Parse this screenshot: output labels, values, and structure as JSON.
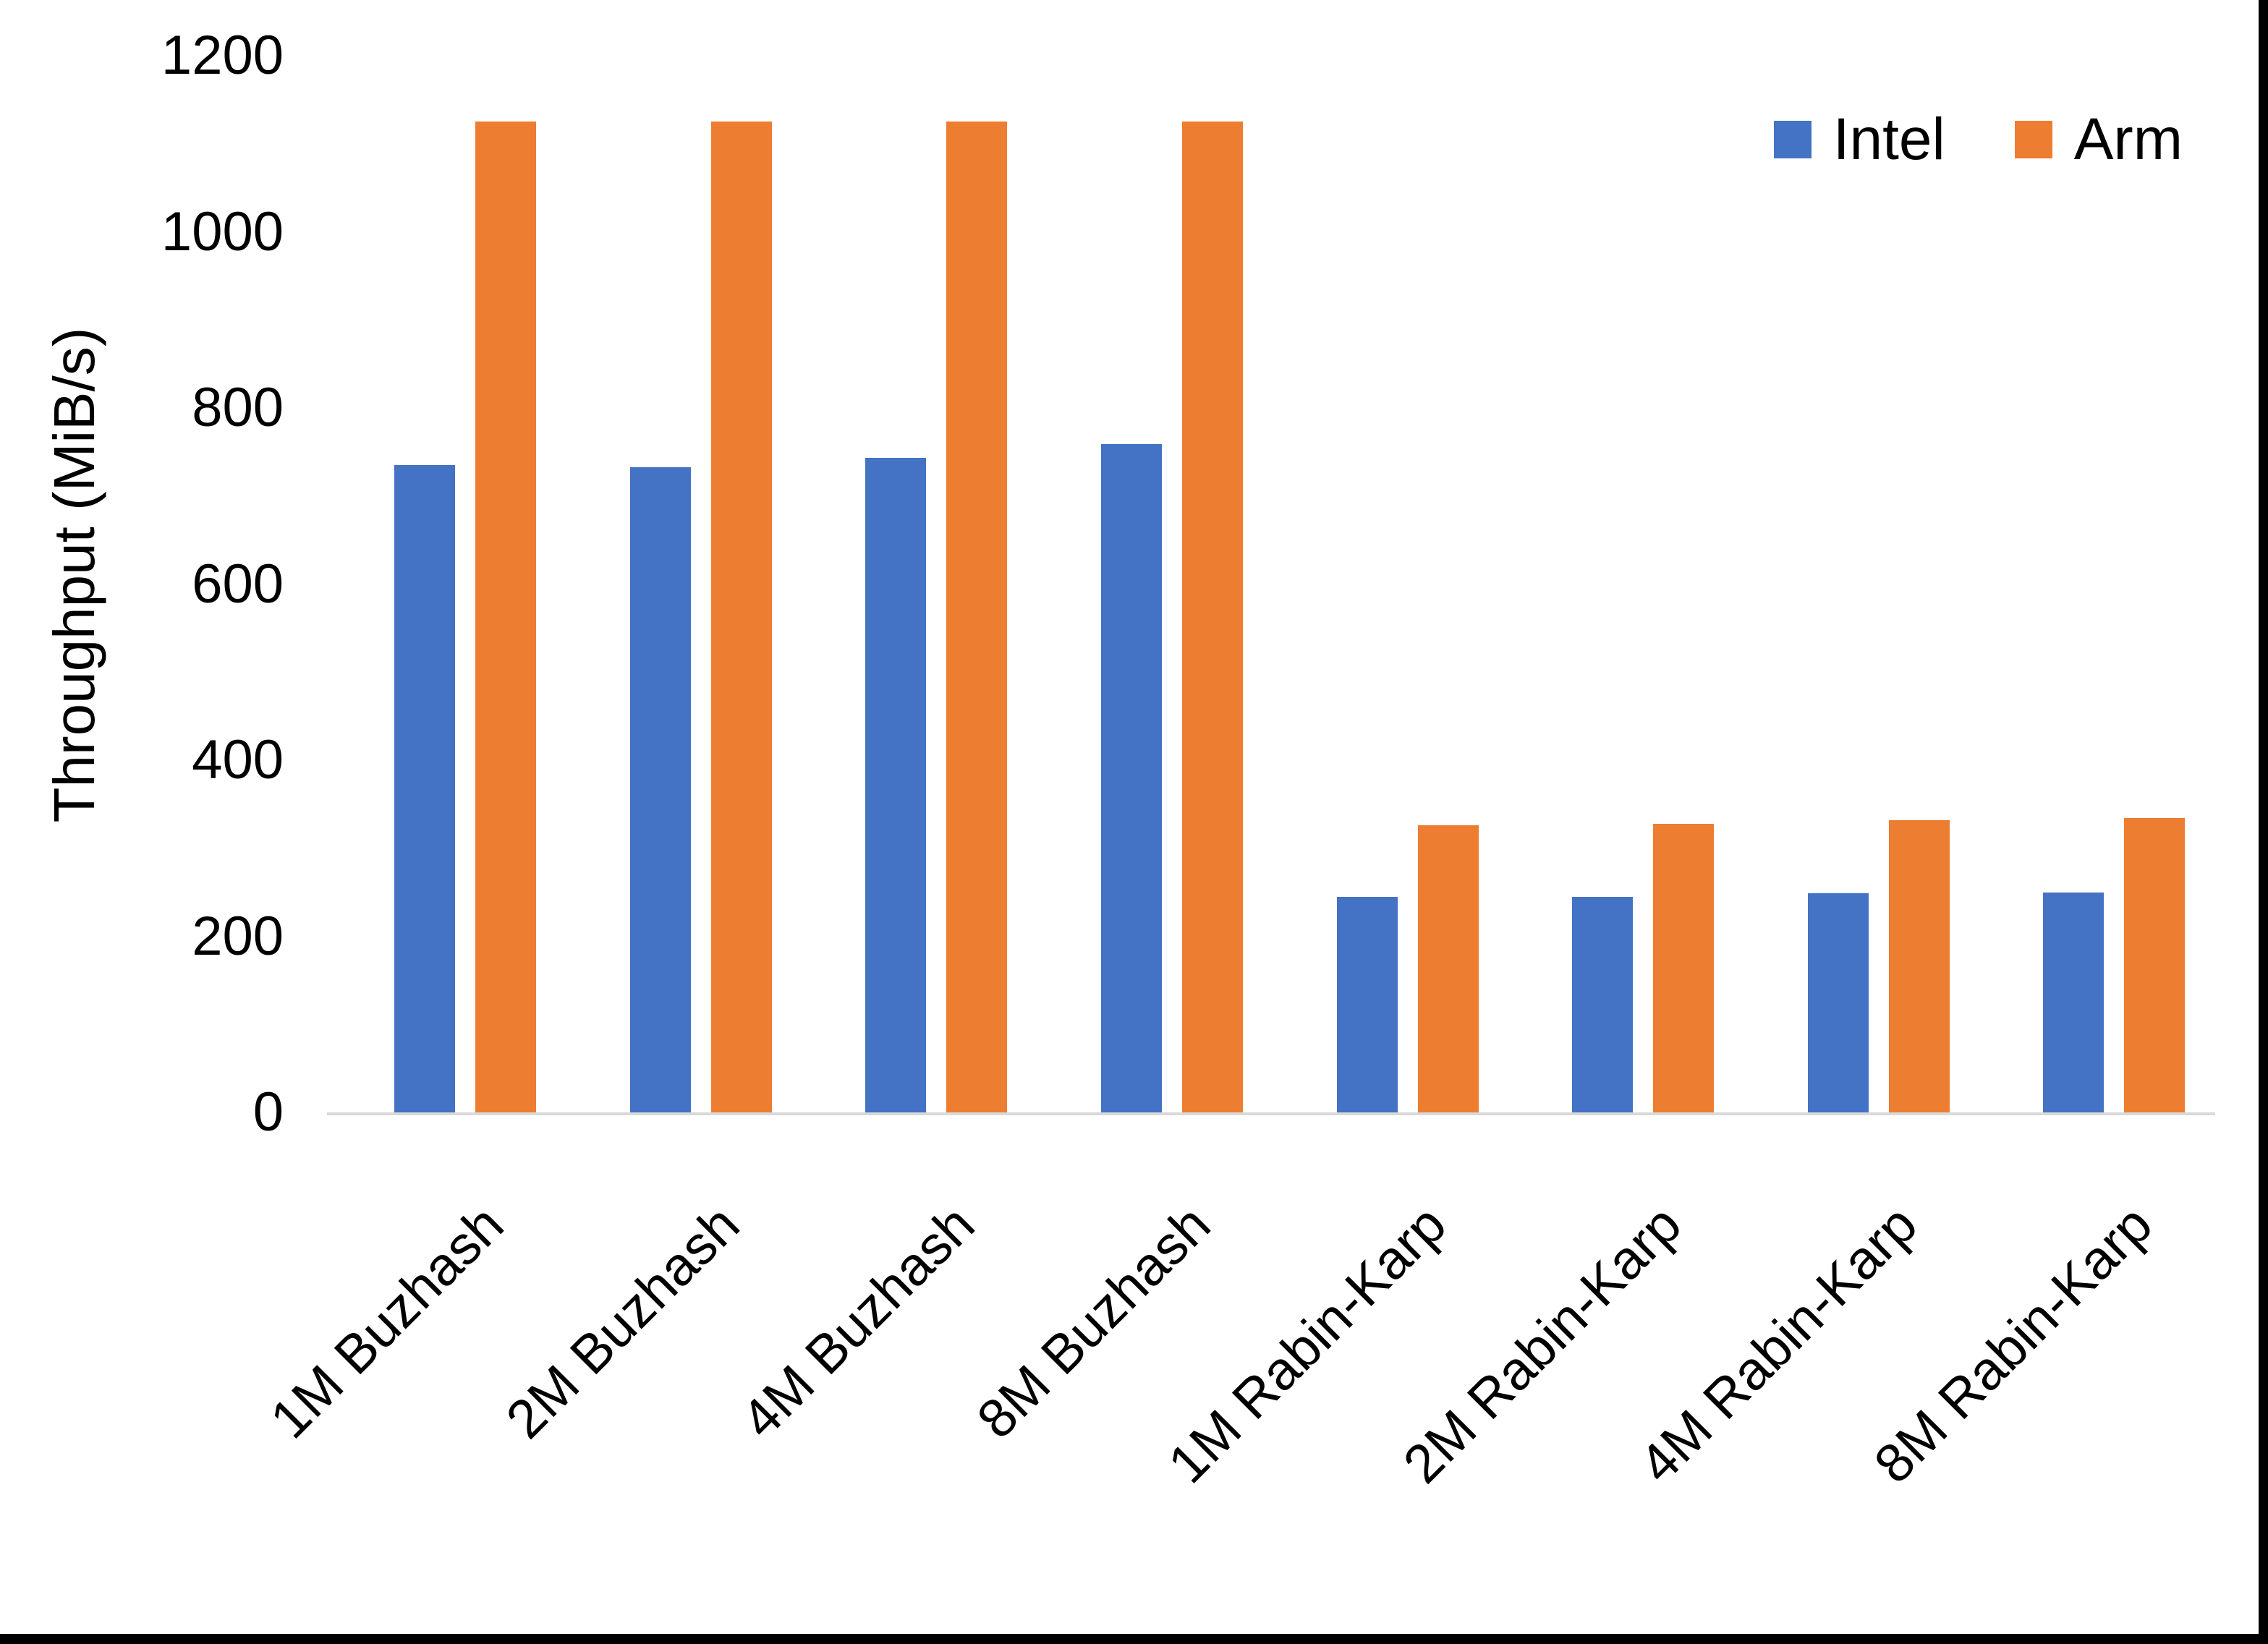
{
  "chart_data": {
    "type": "bar",
    "title": "",
    "ylabel": "Throughput (MiB/s)",
    "xlabel": "",
    "categories": [
      "1M Buzhash",
      "2M Buzhash",
      "4M Buzhash",
      "8M Buzhash",
      "1M Rabin-Karp",
      "2M Rabin-Karp",
      "4M Rabin-Karp",
      "8M Rabin-Karp"
    ],
    "series": [
      {
        "name": "Intel",
        "color": "#4472C4",
        "values": [
          735,
          733,
          743,
          759,
          245,
          245,
          249,
          250
        ]
      },
      {
        "name": "Arm",
        "color": "#ED7D31",
        "values": [
          1125,
          1125,
          1125,
          1125,
          326,
          328,
          332,
          334
        ]
      }
    ],
    "ylim": [
      0,
      1200
    ],
    "yticks": [
      0,
      200,
      400,
      600,
      800,
      1000,
      1200
    ],
    "grid": false,
    "legend_position": "top-right",
    "axis_line_color": "#D9D9D9",
    "background_color": "#FFFFFF",
    "text_color": "#000000"
  }
}
